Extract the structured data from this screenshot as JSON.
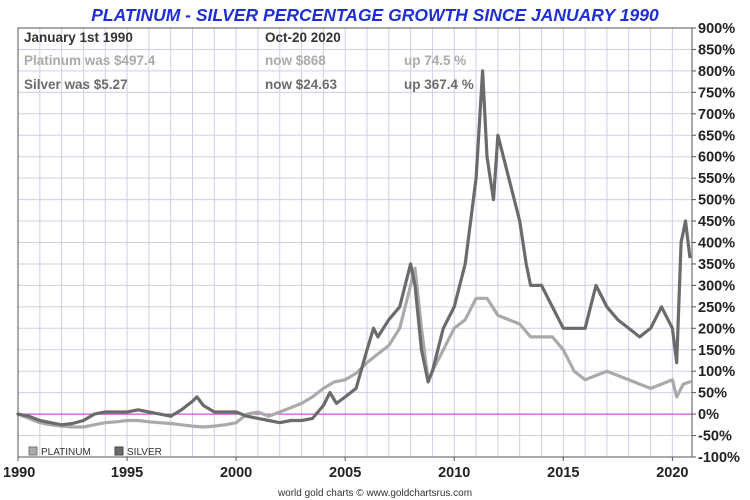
{
  "colors": {
    "title": "#1f2fd6",
    "platinum": "#aaaaaa",
    "silver": "#6b6b6b",
    "zero_line": "#cc33cc",
    "grid": "#cfcfe6",
    "text_dark": "#444444"
  },
  "chart_data": {
    "type": "line",
    "title": "PLATINUM - SILVER PERCENTAGE GROWTH SINCE JANUARY 1990",
    "footer": "world gold charts © www.goldchartsrus.com",
    "xlim": [
      1990,
      2020.9
    ],
    "ylim": [
      -100,
      900
    ],
    "x_ticks": [
      1990,
      1995,
      2000,
      2005,
      2010,
      2015,
      2020
    ],
    "y_ticks": [
      {
        "value": 900,
        "label": "900%"
      },
      {
        "value": 850,
        "label": "850%"
      },
      {
        "value": 800,
        "label": "800%"
      },
      {
        "value": 750,
        "label": "750%"
      },
      {
        "value": 700,
        "label": "700%"
      },
      {
        "value": 650,
        "label": "650%"
      },
      {
        "value": 600,
        "label": "600%"
      },
      {
        "value": 550,
        "label": "550%"
      },
      {
        "value": 500,
        "label": "500%"
      },
      {
        "value": 450,
        "label": "450%"
      },
      {
        "value": 400,
        "label": "400%"
      },
      {
        "value": 350,
        "label": "350%"
      },
      {
        "value": 300,
        "label": "300%"
      },
      {
        "value": 250,
        "label": "250%"
      },
      {
        "value": 200,
        "label": "200%"
      },
      {
        "value": 150,
        "label": "150%"
      },
      {
        "value": 100,
        "label": "100%"
      },
      {
        "value": 50,
        "label": "50%"
      },
      {
        "value": 0,
        "label": "0%"
      },
      {
        "value": -50,
        "label": "-50%"
      },
      {
        "value": -100,
        "label": "-100%"
      }
    ],
    "info": {
      "header_left": "January 1st 1990",
      "header_right": "Oct-20  2020",
      "platinum_was": "Platinum was $497.4",
      "platinum_now": "now $868",
      "platinum_up": "up 74.5 %",
      "silver_was": "Silver was $5.27",
      "silver_now": "now $24.63",
      "silver_up": "up 367.4 %"
    },
    "legend": [
      "PLATINUM",
      "SILVER"
    ],
    "series": [
      {
        "name": "PLATINUM",
        "x": [
          1990,
          1990.5,
          1991,
          1991.5,
          1992,
          1992.5,
          1993,
          1993.5,
          1994,
          1994.5,
          1995,
          1995.5,
          1996,
          1996.5,
          1997,
          1997.5,
          1998,
          1998.5,
          1999,
          1999.5,
          2000,
          2000.5,
          2001,
          2001.5,
          2002,
          2002.5,
          2003,
          2003.5,
          2004,
          2004.5,
          2005,
          2005.5,
          2006,
          2006.5,
          2007,
          2007.5,
          2008,
          2008.2,
          2008.5,
          2008.8,
          2009,
          2009.5,
          2010,
          2010.5,
          2011,
          2011.5,
          2012,
          2012.5,
          2013,
          2013.5,
          2014,
          2014.5,
          2015,
          2015.5,
          2016,
          2016.5,
          2017,
          2017.5,
          2018,
          2018.5,
          2019,
          2019.5,
          2020,
          2020.2,
          2020.5,
          2020.8
        ],
        "values": [
          0,
          -10,
          -20,
          -25,
          -28,
          -30,
          -30,
          -25,
          -20,
          -18,
          -15,
          -15,
          -18,
          -20,
          -22,
          -25,
          -28,
          -30,
          -28,
          -25,
          -20,
          0,
          5,
          -5,
          5,
          15,
          25,
          40,
          60,
          75,
          80,
          95,
          120,
          140,
          160,
          200,
          300,
          340,
          200,
          80,
          100,
          150,
          200,
          220,
          270,
          270,
          230,
          220,
          210,
          180,
          180,
          180,
          150,
          100,
          80,
          90,
          100,
          90,
          80,
          70,
          60,
          70,
          80,
          40,
          70,
          75
        ]
      },
      {
        "name": "SILVER",
        "x": [
          1990,
          1990.5,
          1991,
          1991.5,
          1992,
          1992.5,
          1993,
          1993.5,
          1994,
          1994.5,
          1995,
          1995.5,
          1996,
          1996.5,
          1997,
          1997.5,
          1998,
          1998.2,
          1998.5,
          1999,
          1999.5,
          2000,
          2000.5,
          2001,
          2001.5,
          2002,
          2002.5,
          2003,
          2003.5,
          2004,
          2004.3,
          2004.6,
          2005,
          2005.5,
          2006,
          2006.3,
          2006.5,
          2007,
          2007.5,
          2008,
          2008.2,
          2008.5,
          2008.8,
          2009,
          2009.5,
          2010,
          2010.5,
          2011,
          2011.3,
          2011.5,
          2011.8,
          2012,
          2012.5,
          2013,
          2013.3,
          2013.5,
          2014,
          2014.5,
          2015,
          2015.5,
          2016,
          2016.5,
          2017,
          2017.5,
          2018,
          2018.5,
          2019,
          2019.5,
          2020,
          2020.2,
          2020.4,
          2020.6,
          2020.8
        ],
        "values": [
          0,
          -5,
          -15,
          -20,
          -25,
          -22,
          -15,
          0,
          5,
          5,
          5,
          10,
          5,
          0,
          -5,
          10,
          30,
          40,
          20,
          5,
          5,
          5,
          -5,
          -10,
          -15,
          -20,
          -15,
          -15,
          -10,
          20,
          50,
          25,
          40,
          60,
          150,
          200,
          180,
          220,
          250,
          350,
          300,
          150,
          75,
          100,
          200,
          250,
          350,
          550,
          800,
          600,
          500,
          650,
          550,
          450,
          350,
          300,
          300,
          250,
          200,
          200,
          200,
          300,
          250,
          220,
          200,
          180,
          200,
          250,
          200,
          120,
          400,
          450,
          367
        ]
      }
    ]
  }
}
